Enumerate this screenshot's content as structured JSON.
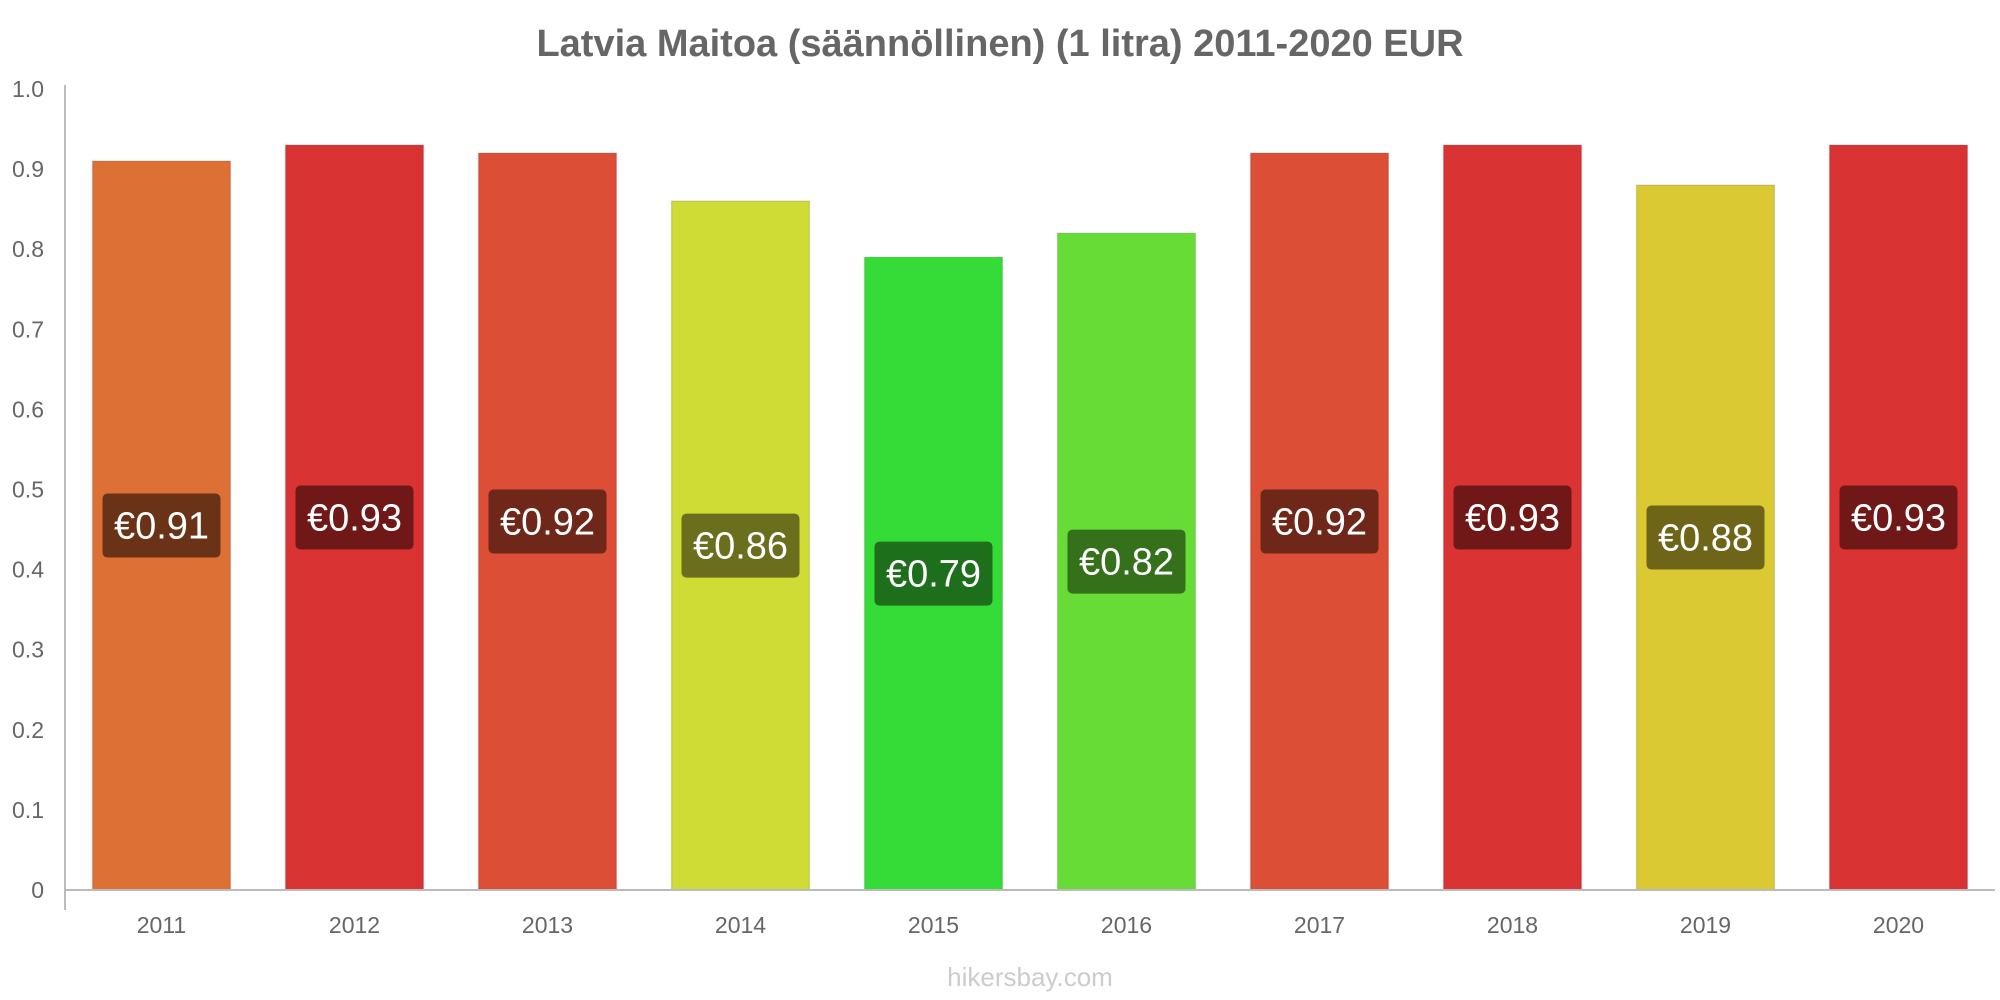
{
  "chart_data": {
    "type": "bar",
    "title": "Latvia Maitoa (säännöllinen) (1 litra) 2011-2020 EUR",
    "categories": [
      "2011",
      "2012",
      "2013",
      "2014",
      "2015",
      "2016",
      "2017",
      "2018",
      "2019",
      "2020"
    ],
    "values": [
      0.91,
      0.93,
      0.92,
      0.86,
      0.79,
      0.82,
      0.92,
      0.93,
      0.88,
      0.93
    ],
    "value_labels": [
      "€0.91",
      "€0.93",
      "€0.92",
      "€0.86",
      "€0.79",
      "€0.82",
      "€0.92",
      "€0.93",
      "€0.88",
      "€0.93"
    ],
    "bar_colors": [
      "#dd7034",
      "#d93334",
      "#dc4e35",
      "#cfdc35",
      "#35dc38",
      "#67dc37",
      "#dc4e35",
      "#d93334",
      "#dbc933",
      "#d93334"
    ],
    "label_bg_colors": [
      "#6a3317",
      "#701818",
      "#6f271a",
      "#6b6e1c",
      "#1d6f1c",
      "#35701b",
      "#6f271a",
      "#701818",
      "#6f6518",
      "#701818"
    ],
    "ylim": [
      0,
      1.0
    ],
    "yticks": [
      "0",
      "0.1",
      "0.2",
      "0.3",
      "0.4",
      "0.5",
      "0.6",
      "0.7",
      "0.8",
      "0.9",
      "1.0"
    ],
    "ytick_values": [
      0,
      0.1,
      0.2,
      0.3,
      0.4,
      0.5,
      0.6,
      0.7,
      0.8,
      0.9,
      1.0
    ],
    "xlabel": "",
    "ylabel": "",
    "grid": false,
    "legend": "none"
  },
  "watermark": "hikersbay.com"
}
